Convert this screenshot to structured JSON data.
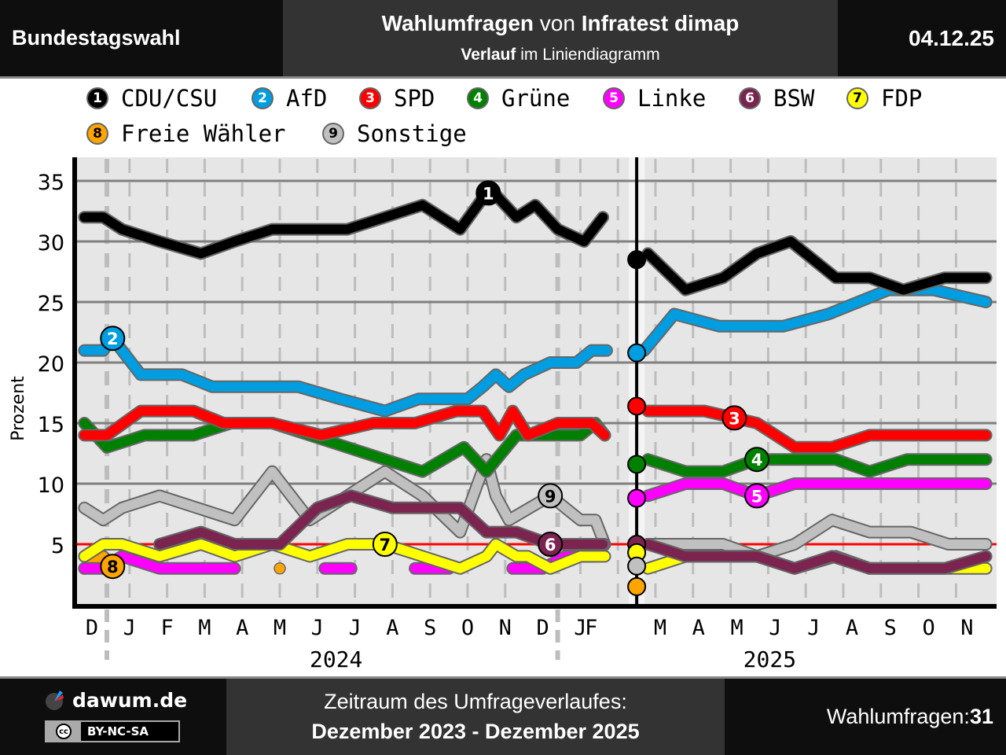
{
  "header": {
    "left": "Bundestagswahl",
    "title_bold1": "Wahlumfragen",
    "title_mid": " von ",
    "title_bold2": "Infratest dimap",
    "subtitle_bold": "Verlauf",
    "subtitle_rest": " im Liniendiagramm",
    "date": "04.12.25"
  },
  "legend": [
    {
      "num": "1",
      "name": "CDU/CSU",
      "color": "#000000",
      "text_color": "#ffffff"
    },
    {
      "num": "2",
      "name": "AfD",
      "color": "#009ee0",
      "text_color": "#ffffff"
    },
    {
      "num": "3",
      "name": "SPD",
      "color": "#ff0000",
      "text_color": "#ffffff"
    },
    {
      "num": "4",
      "name": "Grüne",
      "color": "#008000",
      "text_color": "#ffffff"
    },
    {
      "num": "5",
      "name": "Linke",
      "color": "#ff00ff",
      "text_color": "#ffffff"
    },
    {
      "num": "6",
      "name": "BSW",
      "color": "#7b2450",
      "text_color": "#ffffff"
    },
    {
      "num": "7",
      "name": "FDP",
      "color": "#ffff00",
      "text_color": "#000000"
    },
    {
      "num": "8",
      "name": "Freie Wähler",
      "color": "#ffa500",
      "text_color": "#000000"
    },
    {
      "num": "9",
      "name": "Sonstige",
      "color": "#c0c0c0",
      "text_color": "#000000"
    }
  ],
  "chart_data": {
    "type": "line",
    "title": "Wahlumfragen von Infratest dimap",
    "xlabel": "",
    "ylabel": "Prozent",
    "ylim": [
      0,
      37
    ],
    "yticks": [
      5,
      10,
      15,
      20,
      25,
      30,
      35
    ],
    "grid": true,
    "threshold": 5,
    "election_marker_x": 14.5,
    "x_month_labels": [
      "D",
      "J",
      "F",
      "M",
      "A",
      "M",
      "J",
      "J",
      "A",
      "S",
      "O",
      "N",
      "D",
      "J",
      "F",
      "M",
      "A",
      "M",
      "J",
      "J",
      "A",
      "S",
      "O",
      "N"
    ],
    "x_year_labels": [
      {
        "label": "2024",
        "center": 6.5
      },
      {
        "label": "2025",
        "center": 18
      }
    ],
    "x_note": "x in months from start of Dec 2023 (0 = Dec 2023); election result markers at x=14.5",
    "series": [
      {
        "name": "CDU/CSU",
        "label": "1",
        "label_at": 10.55,
        "segments": [
          [
            [
              -0.2,
              32
            ],
            [
              0.3,
              32
            ],
            [
              0.8,
              31
            ],
            [
              1.8,
              30
            ],
            [
              2.9,
              29
            ],
            [
              3.8,
              30
            ],
            [
              4.8,
              31
            ],
            [
              5.8,
              31
            ],
            [
              6.8,
              31
            ],
            [
              7.8,
              32
            ],
            [
              8.8,
              33
            ],
            [
              9.8,
              31
            ],
            [
              10.5,
              34
            ],
            [
              10.7,
              34
            ],
            [
              11.3,
              32
            ],
            [
              11.8,
              33
            ],
            [
              12.4,
              31
            ],
            [
              13.1,
              30
            ],
            [
              13.6,
              32
            ]
          ],
          [
            [
              14.8,
              29
            ],
            [
              15.8,
              26
            ],
            [
              16.8,
              27
            ],
            [
              17.7,
              29
            ],
            [
              18.6,
              30
            ],
            [
              19.8,
              27
            ],
            [
              20.7,
              27
            ],
            [
              21.6,
              26
            ],
            [
              22.7,
              27
            ],
            [
              23.8,
              27
            ]
          ]
        ]
      },
      {
        "name": "AfD",
        "label": "2",
        "label_at": 0.55,
        "segments": [
          [
            [
              -0.2,
              21
            ],
            [
              0.3,
              21
            ],
            [
              0.55,
              22
            ],
            [
              1.3,
              19
            ],
            [
              2.4,
              19
            ],
            [
              3.2,
              18
            ],
            [
              4.2,
              18
            ],
            [
              5.5,
              18
            ],
            [
              6.6,
              17
            ],
            [
              7.8,
              16
            ],
            [
              8.7,
              17
            ],
            [
              9.7,
              17
            ],
            [
              10.0,
              17
            ],
            [
              10.4,
              18
            ],
            [
              10.75,
              19
            ],
            [
              11.1,
              18
            ],
            [
              11.5,
              19
            ],
            [
              12.2,
              20
            ],
            [
              12.9,
              20
            ],
            [
              13.3,
              21
            ],
            [
              13.7,
              21
            ]
          ],
          [
            [
              14.7,
              21
            ],
            [
              15.5,
              24
            ],
            [
              16.7,
              23
            ],
            [
              18.4,
              23
            ],
            [
              19.6,
              24
            ],
            [
              21.2,
              26
            ],
            [
              22.4,
              26
            ],
            [
              23.8,
              25
            ]
          ]
        ]
      },
      {
        "name": "SPD",
        "label": "3",
        "label_at": 17.1,
        "segments": [
          [
            [
              -0.2,
              14
            ],
            [
              0.4,
              14
            ],
            [
              1.3,
              16
            ],
            [
              2.7,
              16
            ],
            [
              3.5,
              15
            ],
            [
              4.8,
              15
            ],
            [
              6.1,
              14
            ],
            [
              7.5,
              15
            ],
            [
              8.6,
              15
            ],
            [
              9.7,
              16
            ],
            [
              10.4,
              16
            ],
            [
              10.85,
              14
            ],
            [
              11.2,
              16
            ],
            [
              11.6,
              14
            ],
            [
              12.4,
              15
            ],
            [
              13.3,
              15
            ],
            [
              13.65,
              14
            ]
          ],
          [
            [
              14.8,
              16
            ],
            [
              16.3,
              16
            ],
            [
              17.7,
              15
            ],
            [
              18.7,
              13
            ],
            [
              19.7,
              13
            ],
            [
              20.7,
              14
            ],
            [
              23.8,
              14
            ]
          ]
        ]
      },
      {
        "name": "Grüne",
        "label": "4",
        "label_at": 17.7,
        "segments": [
          [
            [
              -0.2,
              15
            ],
            [
              0.4,
              13
            ],
            [
              1.4,
              14
            ],
            [
              2.7,
              14
            ],
            [
              3.7,
              15
            ],
            [
              4.8,
              15
            ],
            [
              5.8,
              14
            ],
            [
              7.8,
              12
            ],
            [
              8.8,
              11
            ],
            [
              9.9,
              13
            ],
            [
              10.5,
              11
            ],
            [
              11.3,
              14
            ],
            [
              12.4,
              14
            ],
            [
              13.0,
              14
            ],
            [
              13.4,
              15
            ],
            [
              13.65,
              14
            ]
          ],
          [
            [
              14.8,
              12
            ],
            [
              15.8,
              11
            ],
            [
              16.8,
              11
            ],
            [
              17.7,
              12
            ],
            [
              18.7,
              12
            ],
            [
              19.8,
              12
            ],
            [
              20.7,
              11
            ],
            [
              21.7,
              12
            ],
            [
              23.8,
              12
            ]
          ]
        ]
      },
      {
        "name": "Linke",
        "label": "5",
        "label_at": 17.7,
        "segments": [
          [
            [
              -0.2,
              3
            ],
            [
              0.3,
              3
            ],
            [
              0.8,
              4
            ],
            [
              1.8,
              3
            ],
            [
              3.8,
              3
            ]
          ],
          [
            [
              6.2,
              3
            ],
            [
              6.9,
              3
            ]
          ],
          [
            [
              8.6,
              3
            ],
            [
              9.5,
              3
            ]
          ],
          [
            [
              11.2,
              3
            ],
            [
              12.0,
              3
            ],
            [
              12.6,
              4
            ],
            [
              13.4,
              4
            ],
            [
              13.65,
              5
            ]
          ],
          [
            [
              14.8,
              9
            ],
            [
              15.8,
              10
            ],
            [
              16.8,
              10
            ],
            [
              17.7,
              9
            ],
            [
              18.7,
              10
            ],
            [
              23.8,
              10
            ]
          ]
        ]
      },
      {
        "name": "BSW",
        "label": "6",
        "label_at": 12.2,
        "segments": [
          [
            [
              1.8,
              5
            ],
            [
              2.9,
              6
            ],
            [
              3.8,
              5
            ],
            [
              5.0,
              5
            ],
            [
              6.0,
              8
            ],
            [
              6.9,
              9
            ],
            [
              8.0,
              8
            ],
            [
              9.8,
              8
            ],
            [
              10.5,
              6
            ],
            [
              11.3,
              6
            ],
            [
              12.2,
              5
            ],
            [
              13.0,
              5
            ],
            [
              13.6,
              5
            ]
          ],
          [
            [
              14.8,
              5
            ],
            [
              15.8,
              4
            ],
            [
              17.7,
              4
            ],
            [
              18.7,
              3
            ],
            [
              19.7,
              4
            ],
            [
              20.7,
              3
            ],
            [
              22.7,
              3
            ],
            [
              23.8,
              4
            ]
          ]
        ]
      },
      {
        "name": "FDP",
        "label": "7",
        "label_at": 7.8,
        "segments": [
          [
            [
              -0.2,
              4
            ],
            [
              0.3,
              5
            ],
            [
              0.8,
              5
            ],
            [
              1.8,
              4
            ],
            [
              2.9,
              5
            ],
            [
              3.8,
              4
            ],
            [
              4.8,
              5
            ],
            [
              5.8,
              4
            ],
            [
              6.8,
              5
            ],
            [
              7.8,
              5
            ],
            [
              9.8,
              3
            ],
            [
              10.5,
              4
            ],
            [
              10.75,
              5
            ],
            [
              11.3,
              4
            ],
            [
              11.6,
              4
            ],
            [
              12.2,
              3
            ],
            [
              13.0,
              4
            ],
            [
              13.65,
              4
            ]
          ],
          [
            [
              14.8,
              3
            ],
            [
              15.8,
              4
            ],
            [
              17.7,
              4
            ],
            [
              18.7,
              3
            ],
            [
              19.8,
              4
            ],
            [
              20.7,
              3
            ],
            [
              23.8,
              3
            ]
          ]
        ]
      },
      {
        "name": "Freie Wähler",
        "label": "8",
        "label_at": 0.55,
        "segments": [
          [
            [
              -0.2,
              3
            ],
            [
              0.3,
              4
            ],
            [
              0.6,
              3
            ]
          ],
          [
            [
              3.8,
              3
            ],
            [
              3.8,
              3
            ]
          ],
          [
            [
              5.0,
              3
            ],
            [
              5.0,
              3
            ]
          ],
          [
            [
              9.8,
              3
            ],
            [
              9.8,
              3
            ]
          ],
          [
            [
              11.2,
              3
            ],
            [
              11.2,
              3
            ]
          ]
        ]
      },
      {
        "name": "Sonstige",
        "label": "9",
        "label_at": 12.2,
        "segments": [
          [
            [
              -0.2,
              8
            ],
            [
              0.3,
              7
            ],
            [
              0.8,
              8
            ],
            [
              1.8,
              9
            ],
            [
              3.8,
              7
            ],
            [
              4.8,
              11
            ],
            [
              5.8,
              7
            ],
            [
              7.8,
              11
            ],
            [
              8.8,
              9
            ],
            [
              9.8,
              6
            ],
            [
              10.5,
              12
            ],
            [
              10.75,
              9
            ],
            [
              11.1,
              7
            ],
            [
              12.2,
              9
            ],
            [
              13.0,
              7
            ],
            [
              13.4,
              7
            ],
            [
              13.65,
              5
            ]
          ],
          [
            [
              14.8,
              5
            ],
            [
              15.8,
              5
            ],
            [
              16.8,
              5
            ],
            [
              17.7,
              4
            ],
            [
              18.7,
              5
            ],
            [
              19.7,
              7
            ],
            [
              20.7,
              6
            ],
            [
              21.8,
              6
            ],
            [
              22.8,
              5
            ],
            [
              23.8,
              5
            ]
          ]
        ]
      }
    ],
    "election_result_markers": [
      {
        "name": "CDU/CSU",
        "value": 28.5
      },
      {
        "name": "AfD",
        "value": 20.8
      },
      {
        "name": "SPD",
        "value": 16.4
      },
      {
        "name": "Grüne",
        "value": 11.6
      },
      {
        "name": "Linke",
        "value": 8.8
      },
      {
        "name": "BSW",
        "value": 5.0
      },
      {
        "name": "FDP",
        "value": 4.3
      },
      {
        "name": "Sonstige",
        "value": 3.2
      },
      {
        "name": "Freie Wähler",
        "value": 1.5
      }
    ]
  },
  "footer": {
    "site": "dawum.de",
    "license": "BY-NC-SA",
    "license_badge": "cc",
    "period_label": "Zeitraum des Umfrageverlaufes:",
    "period_value": "Dezember 2023 - Dezember 2025",
    "count_label": "Wahlumfragen: ",
    "count_value": "31"
  }
}
